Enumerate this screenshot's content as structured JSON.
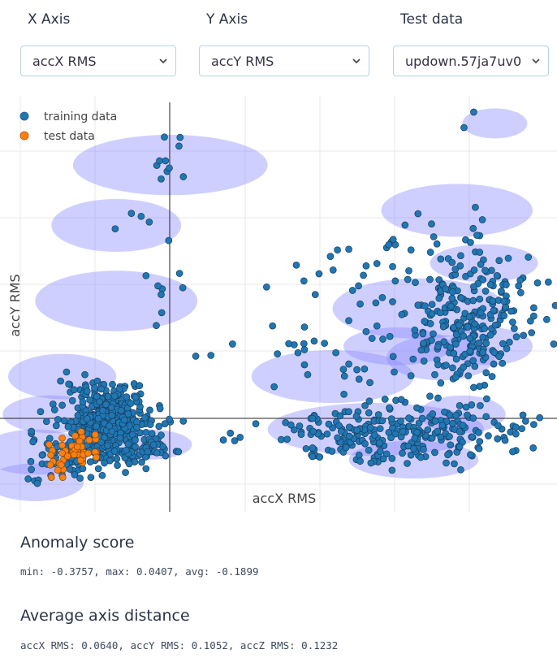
{
  "controls": {
    "x_axis": {
      "label": "X Axis",
      "value": "accX RMS"
    },
    "y_axis": {
      "label": "Y Axis",
      "value": "accY RMS"
    },
    "test_data": {
      "label": "Test data",
      "value": "updown.57ja7uv0"
    }
  },
  "chart_data": {
    "type": "scatter",
    "xlabel": "accX RMS",
    "ylabel": "accY RMS",
    "grid": true,
    "legend_position": "top-left",
    "colors": {
      "training": "#1f77b4",
      "test": "#ff7f0e",
      "cluster": "#8888ff"
    },
    "series": [
      {
        "name": "training data",
        "color": "#1f77b4",
        "points": []
      },
      {
        "name": "test data",
        "color": "#ff7f0e",
        "points": []
      }
    ],
    "clusters": [
      {
        "cx": 0.3,
        "cy": 0.86,
        "rx": 0.18,
        "ry": 0.08
      },
      {
        "cx": 0.2,
        "cy": 0.7,
        "rx": 0.12,
        "ry": 0.07
      },
      {
        "cx": 0.2,
        "cy": 0.5,
        "rx": 0.15,
        "ry": 0.08
      },
      {
        "cx": 0.1,
        "cy": 0.3,
        "rx": 0.1,
        "ry": 0.06
      },
      {
        "cx": 0.08,
        "cy": 0.2,
        "rx": 0.09,
        "ry": 0.05
      },
      {
        "cx": 0.05,
        "cy": 0.1,
        "rx": 0.1,
        "ry": 0.06
      },
      {
        "cx": 0.05,
        "cy": 0.02,
        "rx": 0.09,
        "ry": 0.05
      },
      {
        "cx": 0.26,
        "cy": 0.12,
        "rx": 0.08,
        "ry": 0.04
      },
      {
        "cx": 0.6,
        "cy": 0.3,
        "rx": 0.15,
        "ry": 0.07
      },
      {
        "cx": 0.68,
        "cy": 0.16,
        "rx": 0.2,
        "ry": 0.07
      },
      {
        "cx": 0.75,
        "cy": 0.08,
        "rx": 0.12,
        "ry": 0.05
      },
      {
        "cx": 0.83,
        "cy": 0.74,
        "rx": 0.14,
        "ry": 0.07
      },
      {
        "cx": 0.76,
        "cy": 0.48,
        "rx": 0.16,
        "ry": 0.08
      },
      {
        "cx": 0.72,
        "cy": 0.38,
        "rx": 0.1,
        "ry": 0.05
      },
      {
        "cx": 0.88,
        "cy": 0.6,
        "rx": 0.1,
        "ry": 0.05
      },
      {
        "cx": 0.89,
        "cy": 0.38,
        "rx": 0.08,
        "ry": 0.05
      },
      {
        "cx": 0.9,
        "cy": 0.97,
        "rx": 0.06,
        "ry": 0.04
      },
      {
        "cx": 0.8,
        "cy": 0.35,
        "rx": 0.1,
        "ry": 0.06
      },
      {
        "cx": 0.84,
        "cy": 0.2,
        "rx": 0.08,
        "ry": 0.05
      }
    ]
  },
  "anomaly": {
    "title": "Anomaly score",
    "text": "min: -0.3757, max: 0.0407, avg: -0.1899"
  },
  "axis_distance": {
    "title": "Average axis distance",
    "text": "accX RMS: 0.0640, accY RMS: 0.1052, accZ RMS: 0.1232"
  }
}
